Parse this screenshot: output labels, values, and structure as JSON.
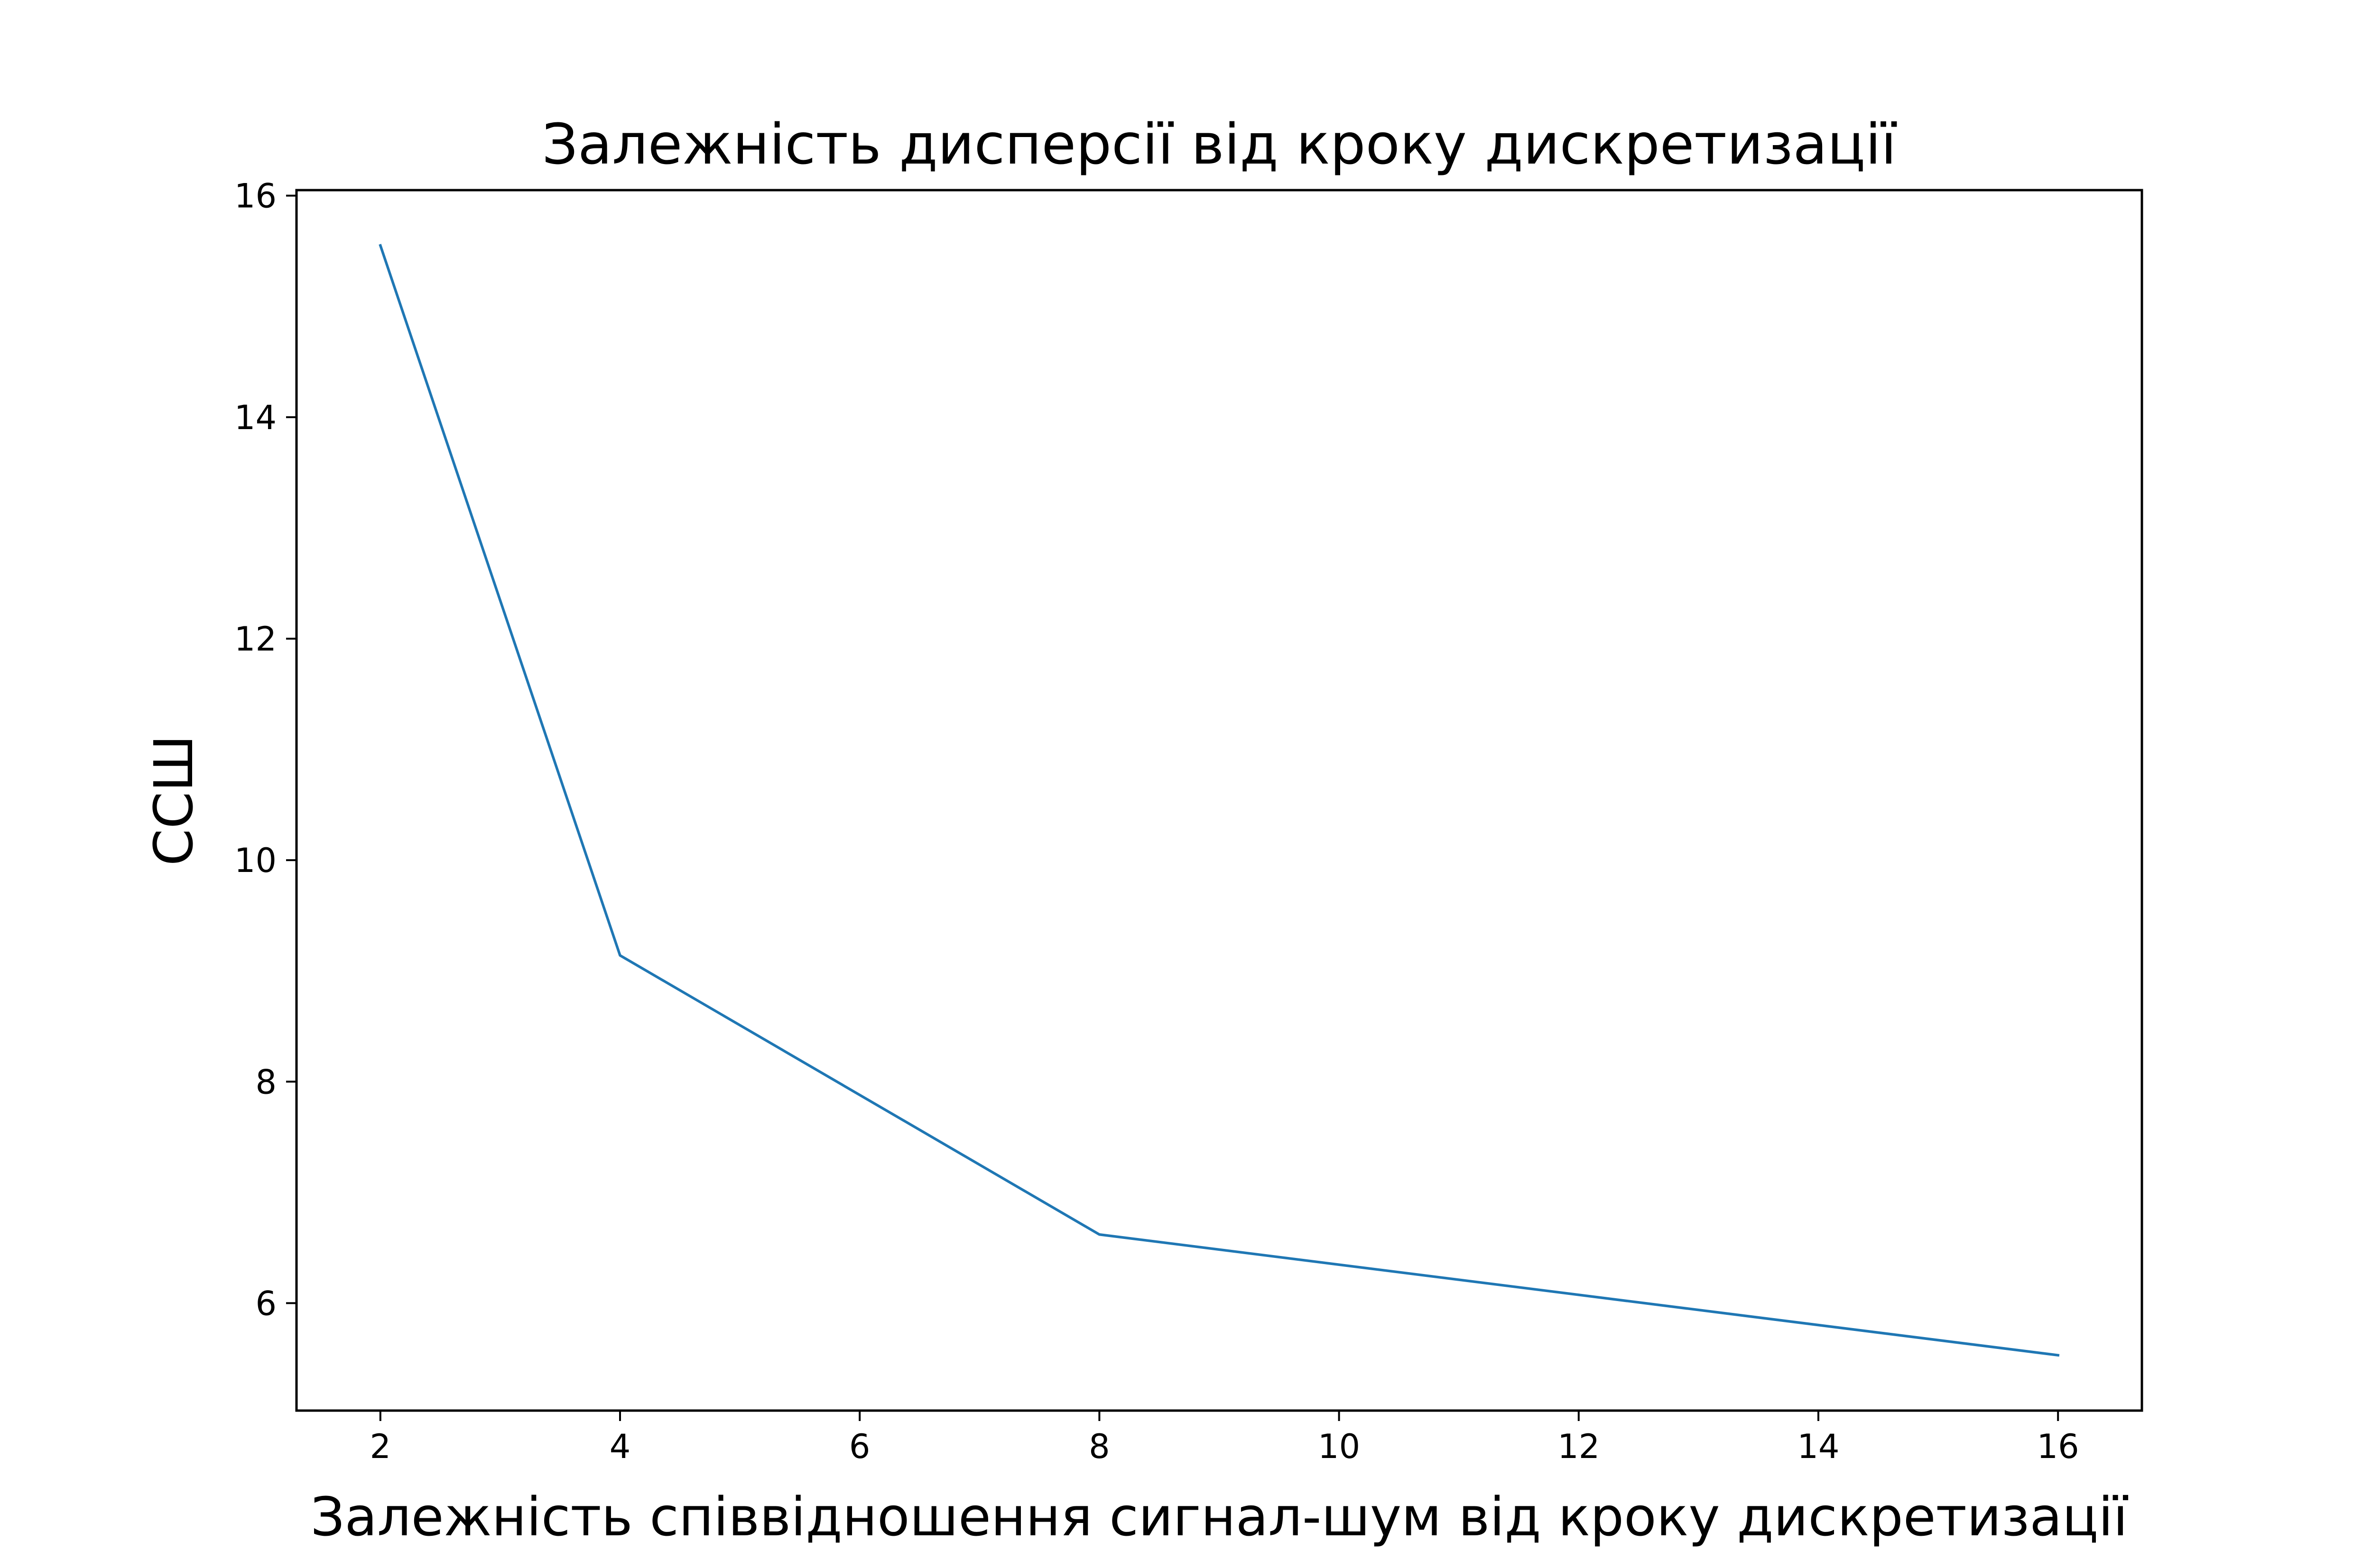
{
  "chart_data": {
    "type": "line",
    "title": "Залежність дисперсії від кроку дискретизації",
    "xlabel": "Залежність співвідношення сигнал-шум від кроку дискретизації",
    "ylabel": "ССШ",
    "x": [
      2,
      4,
      8,
      16
    ],
    "series": [
      {
        "values": [
          15.55,
          9.14,
          6.62,
          5.53
        ]
      }
    ],
    "xlim": [
      1.3,
      16.7
    ],
    "ylim": [
      5.03,
      16.05
    ],
    "xticks": [
      2,
      4,
      6,
      8,
      10,
      12,
      14,
      16
    ],
    "xtick_labels": [
      "2",
      "4",
      "6",
      "8",
      "10",
      "12",
      "14",
      "16"
    ],
    "yticks": [
      6,
      8,
      10,
      12,
      14,
      16
    ],
    "ytick_labels": [
      "6",
      "8",
      "10",
      "12",
      "14",
      "16"
    ],
    "grid": false,
    "line_color": "#1f77b4",
    "axes_color": "#000000",
    "background": "#ffffff"
  }
}
